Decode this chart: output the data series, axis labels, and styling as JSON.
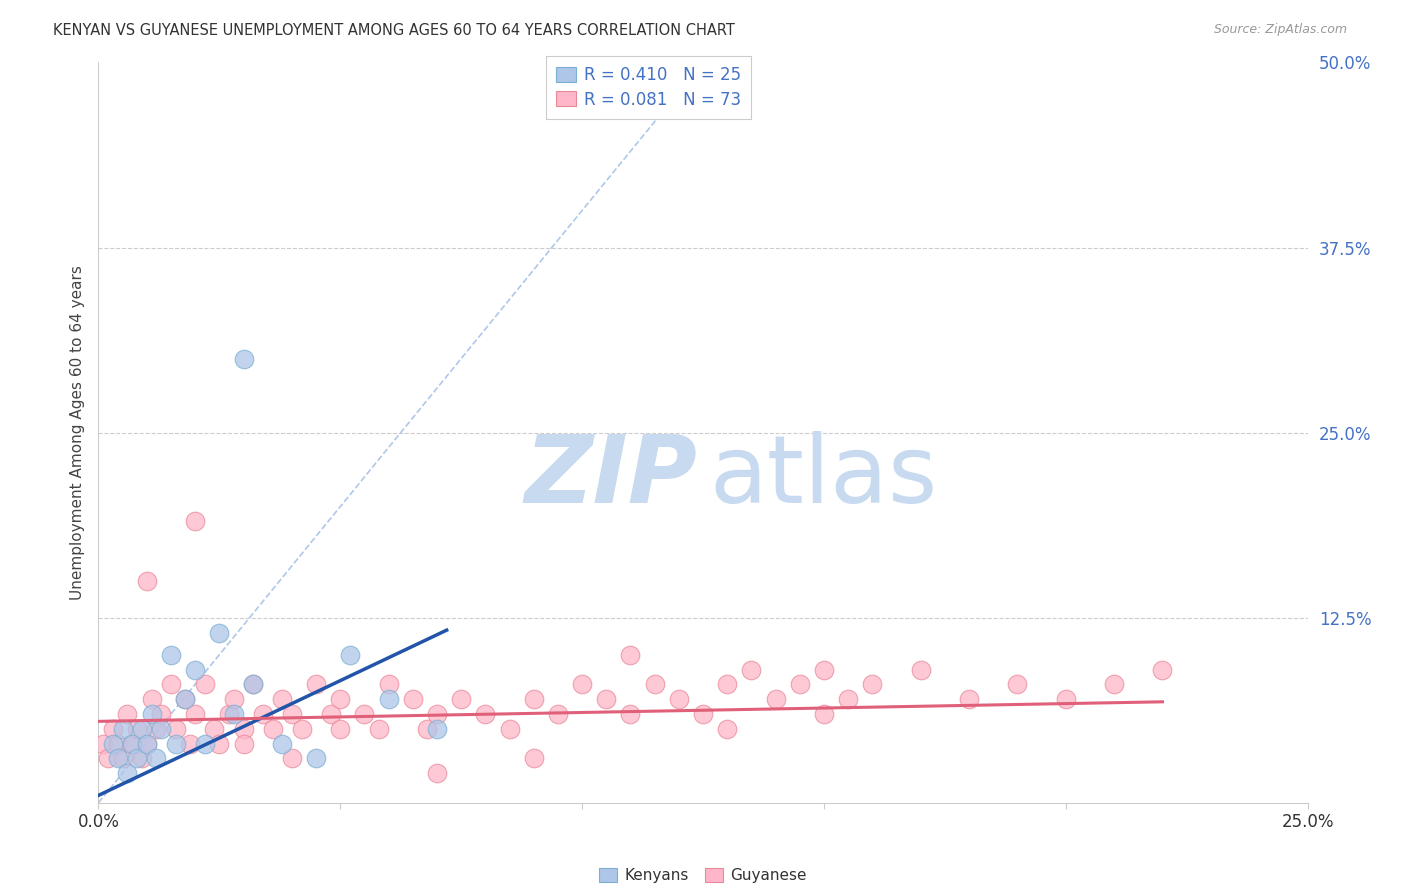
{
  "title": "KENYAN VS GUYANESE UNEMPLOYMENT AMONG AGES 60 TO 64 YEARS CORRELATION CHART",
  "source": "Source: ZipAtlas.com",
  "ylabel_label": "Unemployment Among Ages 60 to 64 years",
  "xmin": 0.0,
  "xmax": 0.25,
  "ymin": 0.0,
  "ymax": 0.5,
  "diagonal_line_color": "#adc8e8",
  "kenyan_color": "#aec6e8",
  "kenyan_edge_color": "#7bafd4",
  "guyanese_color": "#ffb6c8",
  "guyanese_edge_color": "#e8899a",
  "kenyan_trend_color": "#2255aa",
  "guyanese_trend_color": "#e0607a",
  "legend_text_color": "#4472c4",
  "watermark_zip_color": "#c8daf0",
  "watermark_atlas_color": "#c8daf0",
  "background_color": "#ffffff",
  "grid_color": "#cccccc",
  "kenyan_x": [
    0.003,
    0.004,
    0.005,
    0.006,
    0.007,
    0.008,
    0.009,
    0.01,
    0.011,
    0.012,
    0.013,
    0.015,
    0.016,
    0.018,
    0.02,
    0.022,
    0.025,
    0.028,
    0.032,
    0.038,
    0.045,
    0.052,
    0.06,
    0.07,
    0.03
  ],
  "kenyan_y": [
    0.04,
    0.03,
    0.05,
    0.02,
    0.04,
    0.03,
    0.05,
    0.04,
    0.06,
    0.03,
    0.05,
    0.1,
    0.04,
    0.07,
    0.09,
    0.04,
    0.115,
    0.06,
    0.08,
    0.04,
    0.03,
    0.1,
    0.07,
    0.05,
    0.3
  ],
  "guyanese_x": [
    0.001,
    0.002,
    0.003,
    0.004,
    0.005,
    0.006,
    0.007,
    0.008,
    0.009,
    0.01,
    0.011,
    0.012,
    0.013,
    0.015,
    0.016,
    0.018,
    0.019,
    0.02,
    0.022,
    0.024,
    0.025,
    0.027,
    0.028,
    0.03,
    0.032,
    0.034,
    0.036,
    0.038,
    0.04,
    0.042,
    0.045,
    0.048,
    0.05,
    0.055,
    0.058,
    0.06,
    0.065,
    0.068,
    0.07,
    0.075,
    0.08,
    0.085,
    0.09,
    0.095,
    0.1,
    0.105,
    0.11,
    0.115,
    0.12,
    0.125,
    0.13,
    0.135,
    0.14,
    0.145,
    0.15,
    0.155,
    0.16,
    0.17,
    0.18,
    0.19,
    0.2,
    0.21,
    0.22,
    0.01,
    0.02,
    0.03,
    0.04,
    0.05,
    0.07,
    0.09,
    0.11,
    0.13,
    0.15
  ],
  "guyanese_y": [
    0.04,
    0.03,
    0.05,
    0.04,
    0.03,
    0.06,
    0.04,
    0.05,
    0.03,
    0.04,
    0.07,
    0.05,
    0.06,
    0.08,
    0.05,
    0.07,
    0.04,
    0.06,
    0.08,
    0.05,
    0.04,
    0.06,
    0.07,
    0.05,
    0.08,
    0.06,
    0.05,
    0.07,
    0.06,
    0.05,
    0.08,
    0.06,
    0.07,
    0.06,
    0.05,
    0.08,
    0.07,
    0.05,
    0.06,
    0.07,
    0.06,
    0.05,
    0.07,
    0.06,
    0.08,
    0.07,
    0.06,
    0.08,
    0.07,
    0.06,
    0.08,
    0.09,
    0.07,
    0.08,
    0.09,
    0.07,
    0.08,
    0.09,
    0.07,
    0.08,
    0.07,
    0.08,
    0.09,
    0.15,
    0.19,
    0.04,
    0.03,
    0.05,
    0.02,
    0.03,
    0.1,
    0.05,
    0.06
  ],
  "kenyan_trend_x": [
    0.0,
    0.072
  ],
  "kenyan_trend_y_intercept": 0.005,
  "kenyan_trend_slope": 1.55,
  "guyanese_trend_x": [
    0.0,
    0.22
  ],
  "guyanese_trend_y_intercept": 0.055,
  "guyanese_trend_slope": 0.06
}
